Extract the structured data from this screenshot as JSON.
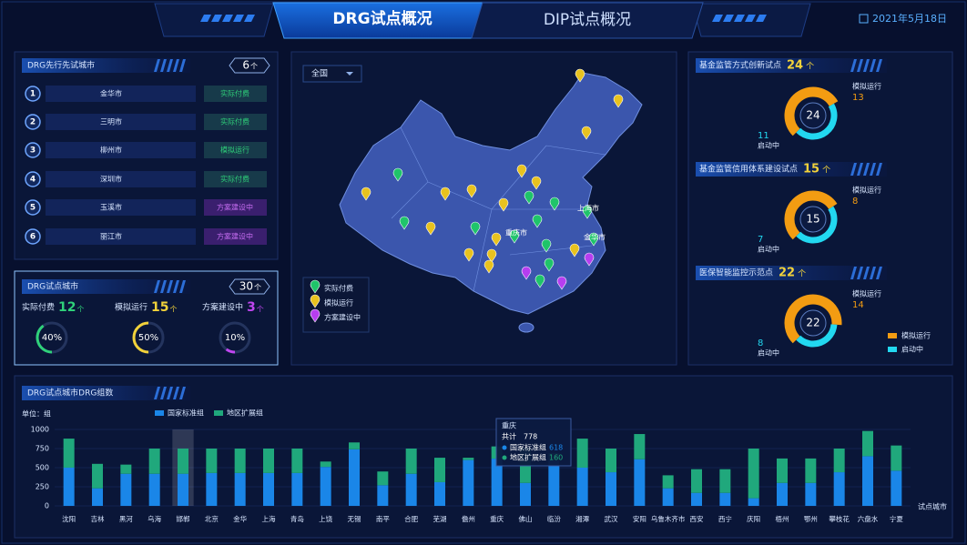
{
  "header": {
    "tabs": [
      "DRG试点概况",
      "DIP试点概况"
    ],
    "date": "2021年5月18日"
  },
  "pioneer_cities": {
    "title": "DRG先行先试城市",
    "count": 6,
    "unit": "个",
    "rows": [
      {
        "rank": 1,
        "name": "金华市",
        "status": "实际付费",
        "color": "#2fd17a"
      },
      {
        "rank": 2,
        "name": "三明市",
        "status": "实际付费",
        "color": "#2fd17a"
      },
      {
        "rank": 3,
        "name": "柳州市",
        "status": "模拟运行",
        "color": "#2fd17a"
      },
      {
        "rank": 4,
        "name": "深圳市",
        "status": "实际付费",
        "color": "#2fd17a"
      },
      {
        "rank": 5,
        "name": "玉溪市",
        "status": "方案建设中",
        "color": "#c46cf0"
      },
      {
        "rank": 6,
        "name": "丽江市",
        "status": "方案建设中",
        "color": "#c46cf0"
      }
    ]
  },
  "drg_pilots": {
    "title": "DRG试点城市",
    "total": 30,
    "unit": "个",
    "groups": [
      {
        "label": "实际付费",
        "count": 12,
        "unit": "个",
        "share": {
          "value": 40,
          "label": "40%"
        },
        "color": "#2fd17a"
      },
      {
        "label": "模拟运行",
        "count": 15,
        "unit": "个",
        "share": {
          "value": 50,
          "label": "50%"
        },
        "color": "#f2d23a"
      },
      {
        "label": "方案建设中",
        "count": 3,
        "unit": "个",
        "share": {
          "value": 10,
          "label": "10%"
        },
        "color": "#c046f0"
      }
    ]
  },
  "map": {
    "region": "全国",
    "city_labels": [
      "重庆市",
      "上海市",
      "金华市"
    ],
    "legend": [
      {
        "label": "实际付费",
        "color": "#1fc46a"
      },
      {
        "label": "模拟运行",
        "color": "#e8c21f"
      },
      {
        "label": "方案建设中",
        "color": "#b63ef0"
      }
    ]
  },
  "supervision": {
    "legend": [
      {
        "label": "模拟运行",
        "color": "#f39c12"
      },
      {
        "label": "启动中",
        "color": "#22d8f0"
      }
    ],
    "panels": [
      {
        "title": "基金监管方式创新试点",
        "total": 24,
        "unit": "个",
        "running_label": "模拟运行",
        "running": 13,
        "starting_label": "启动中",
        "starting": 11
      },
      {
        "title": "基金监管信用体系建设试点",
        "total": 15,
        "unit": "个",
        "running_label": "模拟运行",
        "running": 8,
        "starting_label": "启动中",
        "starting": 7
      },
      {
        "title": "医保智能监控示范点",
        "total": 22,
        "unit": "个",
        "running_label": "模拟运行",
        "running": 14,
        "starting_label": "启动中",
        "starting": 8
      }
    ]
  },
  "chart_data": {
    "type": "bar",
    "stacked": true,
    "title": "DRG试点城市DRG组数",
    "unit_label": "单位：组",
    "x_label": "试点城市",
    "categories": [
      "沈阳",
      "吉林",
      "黑河",
      "乌海",
      "邯郸",
      "北京",
      "金华",
      "上海",
      "青岛",
      "上饶",
      "无锡",
      "南平",
      "合肥",
      "芜湖",
      "儋州",
      "重庆",
      "佛山",
      "临汾",
      "湘潭",
      "武汉",
      "安阳",
      "乌鲁木齐市",
      "西安",
      "西宁",
      "庆阳",
      "梧州",
      "鄂州",
      "攀枝花",
      "六盘水",
      "宁夏"
    ],
    "series": [
      {
        "name": "国家标准组",
        "color": "#1a86e8",
        "values": [
          500,
          230,
          420,
          420,
          420,
          430,
          430,
          430,
          430,
          510,
          740,
          270,
          420,
          310,
          600,
          618,
          300,
          600,
          500,
          440,
          610,
          230,
          170,
          170,
          100,
          300,
          300,
          440,
          650,
          460
        ]
      },
      {
        "name": "地区扩展组",
        "color": "#20a87c",
        "values": [
          380,
          320,
          120,
          330,
          330,
          320,
          320,
          320,
          320,
          70,
          90,
          180,
          330,
          320,
          30,
          160,
          460,
          90,
          380,
          310,
          330,
          170,
          310,
          310,
          650,
          320,
          320,
          310,
          330,
          330
        ]
      }
    ],
    "ylim": [
      0,
      1000
    ],
    "yticks": [
      0,
      250,
      500,
      750,
      1000
    ],
    "grid": true,
    "tooltip": {
      "total_label": "共计",
      "total": 778
    }
  }
}
